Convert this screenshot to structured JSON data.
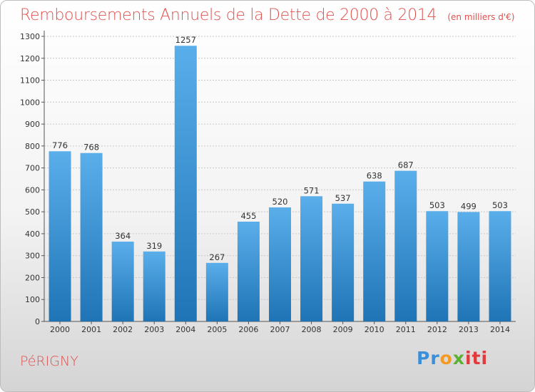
{
  "title": "Remboursements Annuels de la Dette de 2000 à 2014",
  "subtitle": "(en milliers d'€)",
  "commune": "PéRIGNY",
  "logo": {
    "p1": "Pr",
    "p2": "o",
    "p3": "x",
    "p4": "iti"
  },
  "colors": {
    "bar_top": "#5aaeea",
    "bar_bottom": "#1f74b6",
    "accent": "#e0504e",
    "grid": "#c8c8c8"
  },
  "chart_data": {
    "type": "bar",
    "title": "Remboursements Annuels de la Dette de 2000 à 2014",
    "xlabel": "",
    "ylabel": "en milliers d'€",
    "categories": [
      "2000",
      "2001",
      "2002",
      "2003",
      "2004",
      "2005",
      "2006",
      "2007",
      "2008",
      "2009",
      "2010",
      "2011",
      "2012",
      "2013",
      "2014"
    ],
    "values": [
      776,
      768,
      364,
      319,
      1257,
      267,
      455,
      520,
      571,
      537,
      638,
      687,
      503,
      499,
      503
    ],
    "ylim": [
      0,
      1300
    ],
    "yticks": [
      0,
      100,
      200,
      300,
      400,
      500,
      600,
      700,
      800,
      900,
      1000,
      1100,
      1200,
      1300
    ],
    "grid": true
  }
}
